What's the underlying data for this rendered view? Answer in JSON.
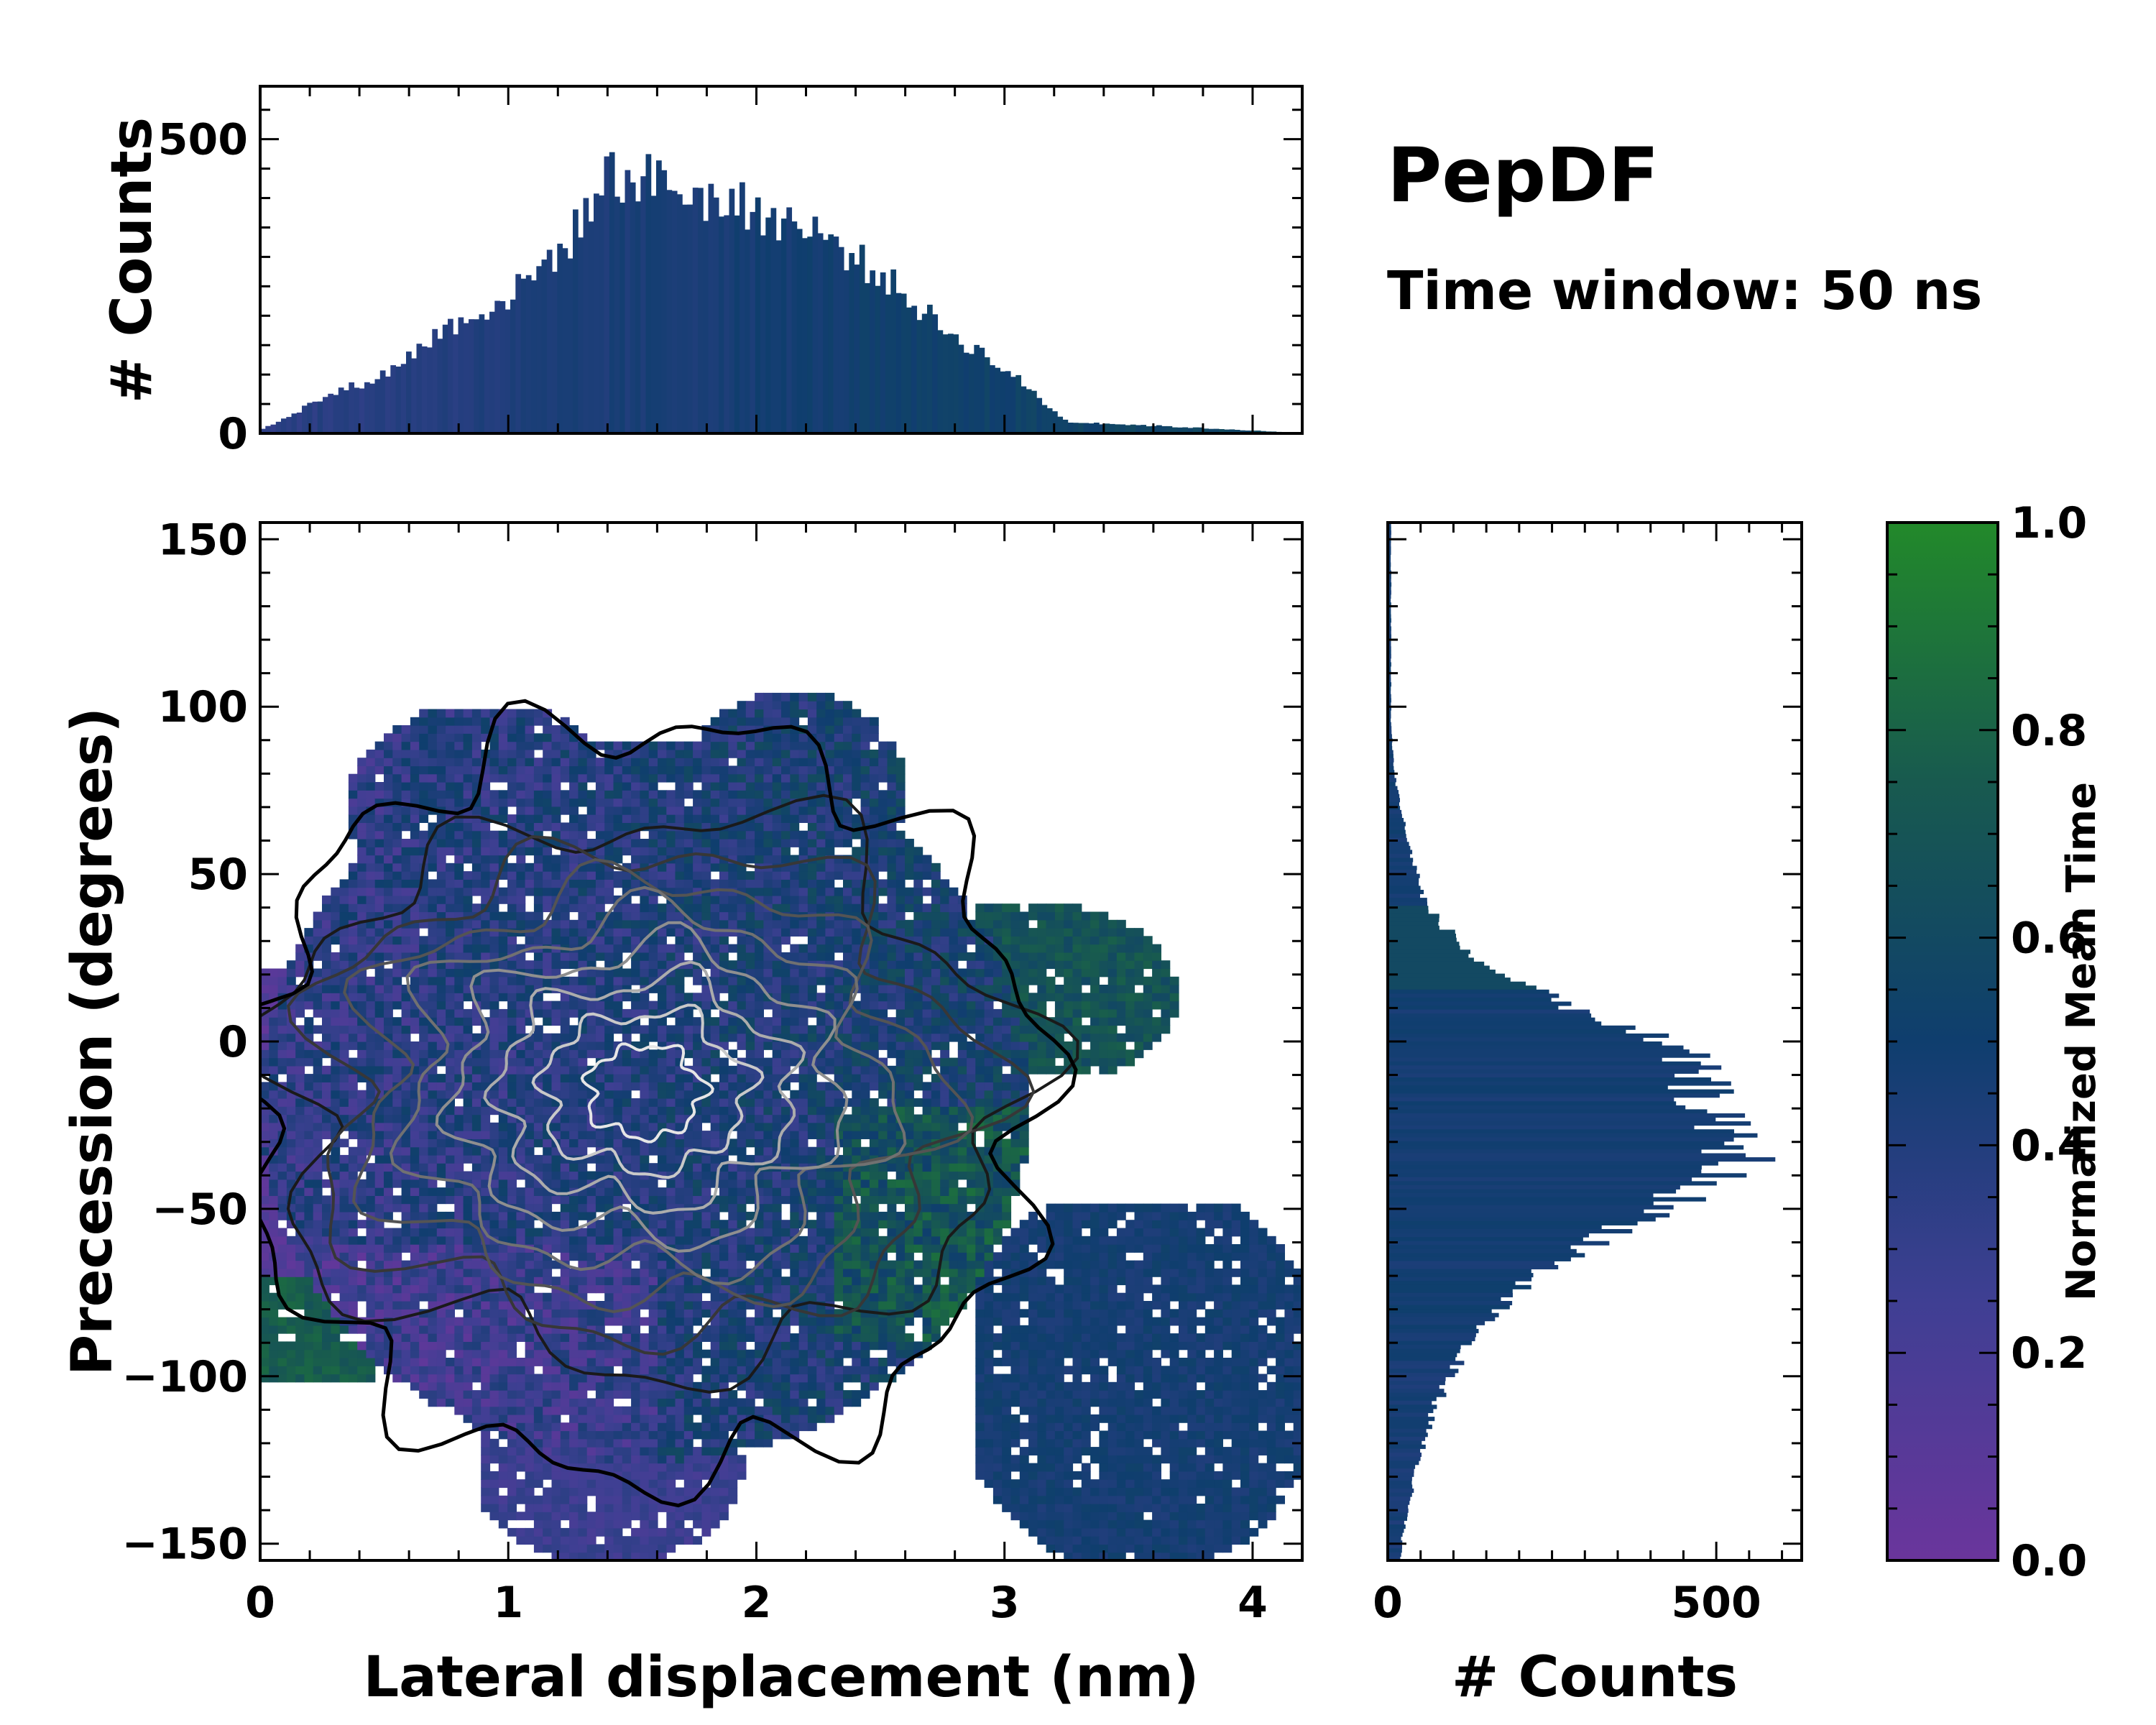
{
  "figure": {
    "title": "PepDF",
    "subtitle": "Time window: 50 ns"
  },
  "colors": {
    "purple": "#6a359c",
    "navy": "#0f3e6e",
    "green": "#22892a",
    "contour_dark": "#1a1a1a",
    "contour_light": "#e6e6e6"
  },
  "chart_data": [
    {
      "id": "main",
      "type": "heatmap",
      "xlabel": "Lateral displacement (nm)",
      "ylabel": "Precession (degrees)",
      "xlim": [
        0,
        4.2
      ],
      "ylim": [
        -155,
        155
      ],
      "xticks": [
        0,
        1,
        2,
        3,
        4
      ],
      "xtick_labels": [
        "0",
        "1",
        "2",
        "3",
        "4"
      ],
      "yticks": [
        150,
        100,
        50,
        0,
        -50,
        -100,
        -150
      ],
      "ytick_labels": [
        "150",
        "100",
        "50",
        "0",
        "−50",
        "−100",
        "−150"
      ],
      "value_label": "Normalized Mean Time",
      "value_range": [
        0.0,
        1.0
      ],
      "density_peak": {
        "x": 1.4,
        "y": -15
      },
      "contour_levels": 8,
      "regions": [
        {
          "name": "main",
          "x": [
            0.3,
            3.1
          ],
          "y": [
            -135,
            95
          ],
          "value": 0.4
        },
        {
          "name": "lower-right",
          "x": [
            2.8,
            4.2
          ],
          "y": [
            -155,
            -45
          ],
          "value": 0.5
        },
        {
          "name": "upper-right",
          "x": [
            2.7,
            3.7
          ],
          "y": [
            -10,
            40
          ],
          "value": 0.6
        },
        {
          "name": "bottom-center",
          "x": [
            0.9,
            1.9
          ],
          "y": [
            -155,
            -100
          ],
          "value": 0.3
        },
        {
          "name": "left-edge",
          "x": [
            0.0,
            0.4
          ],
          "y": [
            -100,
            20
          ],
          "value": 0.15
        }
      ]
    },
    {
      "id": "top-histogram",
      "type": "bar",
      "ylabel": "# Counts",
      "xlim": [
        0,
        4.2
      ],
      "ylim": [
        0,
        590
      ],
      "yticks": [
        0,
        500
      ],
      "ytick_labels": [
        "0",
        "500"
      ],
      "x": [
        0.0,
        0.25,
        0.5,
        0.75,
        1.0,
        1.25,
        1.4,
        1.6,
        1.8,
        2.0,
        2.25,
        2.5,
        2.75,
        3.0,
        3.25,
        3.5,
        3.75,
        4.0,
        4.2
      ],
      "counts": [
        5,
        60,
        100,
        180,
        230,
        330,
        440,
        430,
        400,
        380,
        340,
        270,
        180,
        110,
        20,
        15,
        10,
        5,
        0
      ]
    },
    {
      "id": "right-histogram",
      "type": "bar",
      "orientation": "horizontal",
      "xlabel": "# Counts",
      "xlim": [
        0,
        630
      ],
      "xticks": [
        0,
        500
      ],
      "xtick_labels": [
        "0",
        "500"
      ],
      "y": [
        -150,
        -130,
        -110,
        -90,
        -70,
        -55,
        -45,
        -35,
        -25,
        -15,
        -5,
        5,
        15,
        25,
        40,
        60,
        80,
        95
      ],
      "counts": [
        20,
        40,
        70,
        120,
        220,
        370,
        460,
        540,
        500,
        480,
        450,
        360,
        220,
        130,
        60,
        30,
        10,
        5
      ]
    },
    {
      "id": "colorbar",
      "type": "colorbar",
      "label": "Normalized Mean Time",
      "range": [
        0.0,
        1.0
      ],
      "ticks": [
        0.0,
        0.2,
        0.4,
        0.6,
        0.8,
        1.0
      ],
      "tick_labels": [
        "0.0",
        "0.2",
        "0.4",
        "0.6",
        "0.8",
        "1.0"
      ]
    }
  ]
}
